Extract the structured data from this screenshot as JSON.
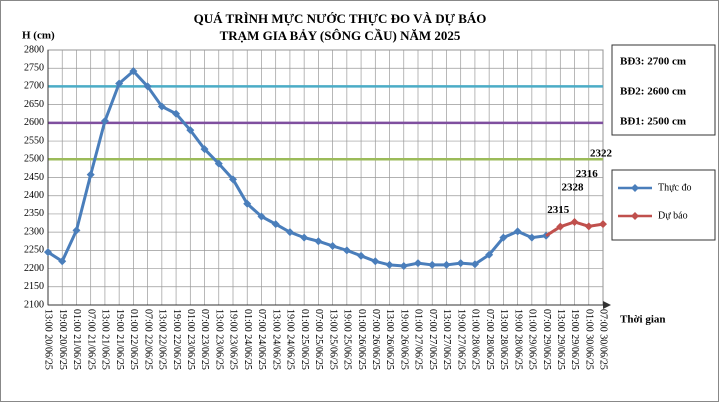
{
  "chart_data": {
    "type": "line",
    "title": [
      "QUÁ TRÌNH MỰC NƯỚC THỰC ĐO VÀ DỰ BÁO",
      "TRẠM GIA BẢY (SÔNG CẦU) NĂM 2025"
    ],
    "y_label": "H (cm)",
    "x_label": "Thời gian",
    "categories": [
      "13:00 20/06/25",
      "19:00 20/06/25",
      "01:00 21/06/25",
      "07:00 21/06/25",
      "13:00 21/06/25",
      "19:00 21/06/25",
      "01:00 22/06/25",
      "07:00 22/06/25",
      "13:00 22/06/25",
      "19:00 22/06/25",
      "01:00 23/06/25",
      "07:00 23/06/25",
      "13:00 23/06/25",
      "19:00 23/06/25",
      "01:00 24/06/25",
      "07:00 24/06/25",
      "13:00 24/06/25",
      "19:00 24/06/25",
      "01:00 25/06/25",
      "07:00 25/06/25",
      "13:00 25/06/25",
      "19:00 25/06/25",
      "01:00 26/06/25",
      "07:00 26/06/25",
      "13:00 26/06/25",
      "19:00 26/06/25",
      "01:00 27/06/25",
      "07:00 27/06/25",
      "13:00 27/06/25",
      "19:00 27/06/25",
      "01:00 28/06/25",
      "07:00 28/06/25",
      "13:00 28/06/25",
      "19:00 28/06/25",
      "01:00 29/06/25",
      "07:00 29/06/25",
      "13:00 29/06/25",
      "19:00 29/06/25",
      "01:00 30/06/25",
      "07:00 30/06/25"
    ],
    "series": [
      {
        "name": "Thực đo",
        "color": "#4a7ebb",
        "values": [
          2245,
          2220,
          2305,
          2458,
          2605,
          2708,
          2742,
          2700,
          2645,
          2625,
          2580,
          2528,
          2488,
          2445,
          2378,
          2343,
          2322,
          2300,
          2285,
          2275,
          2262,
          2250,
          2235,
          2220,
          2210,
          2207,
          2215,
          2210,
          2210,
          2215,
          2212,
          2238,
          2285,
          2302,
          2285,
          2290,
          null,
          null,
          null,
          null
        ]
      },
      {
        "name": "Dự báo",
        "color": "#c0504d",
        "values": [
          null,
          null,
          null,
          null,
          null,
          null,
          null,
          null,
          null,
          null,
          null,
          null,
          null,
          null,
          null,
          null,
          null,
          null,
          null,
          null,
          null,
          null,
          null,
          null,
          null,
          null,
          null,
          null,
          null,
          null,
          null,
          null,
          null,
          null,
          null,
          null,
          2315,
          2328,
          2316,
          2322
        ]
      }
    ],
    "reference_lines": [
      {
        "value": 2700,
        "label": "BĐ3: 2700 cm",
        "color": "#4bacc6"
      },
      {
        "value": 2600,
        "label": "BĐ2: 2600 cm",
        "color": "#7f4f9f"
      },
      {
        "value": 2500,
        "label": "BĐ1: 2500 cm",
        "color": "#9bbb59"
      }
    ],
    "ylim": [
      2100,
      2800
    ],
    "yticks": [
      2100,
      2150,
      2200,
      2250,
      2300,
      2350,
      2400,
      2450,
      2500,
      2550,
      2600,
      2650,
      2700,
      2750,
      2800
    ],
    "grid": true
  }
}
